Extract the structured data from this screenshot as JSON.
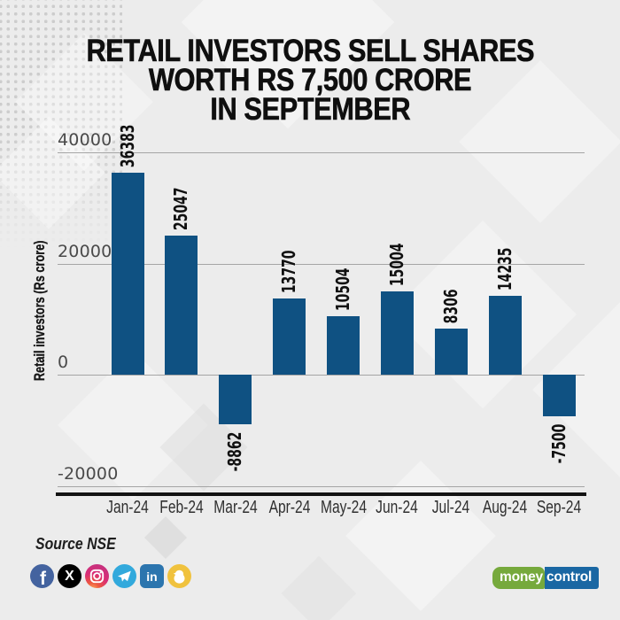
{
  "title": {
    "line1": "RETAIL INVESTORS SELL SHARES",
    "line2": "WORTH RS 7,500 CRORE",
    "line3": "IN SEPTEMBER"
  },
  "chart_data": {
    "type": "bar",
    "categories": [
      "Jan-24",
      "Feb-24",
      "Mar-24",
      "Apr-24",
      "May-24",
      "Jun-24",
      "Jul-24",
      "Aug-24",
      "Sep-24"
    ],
    "values": [
      36383,
      25047,
      -8862,
      13770,
      10504,
      15004,
      8306,
      14235,
      -7500
    ],
    "title": "RETAIL INVESTORS SELL SHARES WORTH RS 7,500 CRORE IN SEPTEMBER",
    "xlabel": "",
    "ylabel": "Retail investors (Rs crore)",
    "yticks": [
      40000,
      20000,
      0,
      -20000
    ],
    "ylim": [
      -20000,
      40000
    ],
    "bar_color": "#0f5182",
    "grid": true,
    "legend": false
  },
  "source": {
    "label": "Source NSE"
  },
  "social": {
    "icons": [
      "facebook-icon",
      "x-icon",
      "instagram-icon",
      "telegram-icon",
      "linkedin-icon",
      "koo-icon"
    ],
    "facebook_glyph": "f",
    "x_glyph": "X",
    "linkedin_glyph": "in"
  },
  "logo": {
    "part1": "money",
    "part2": "control"
  }
}
